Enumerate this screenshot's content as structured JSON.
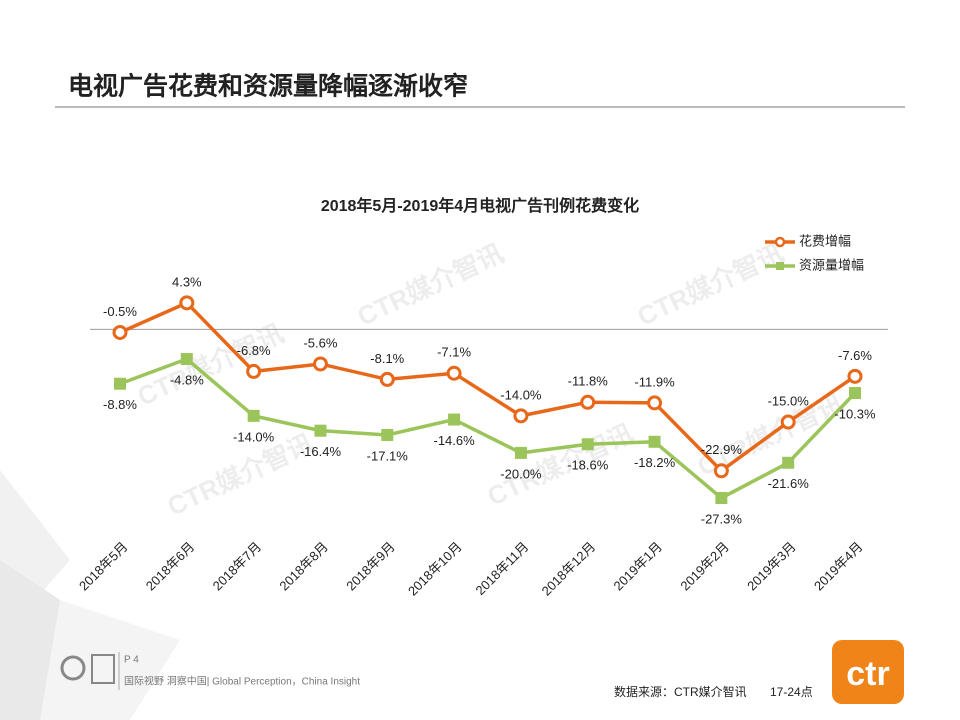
{
  "slide": {
    "title": "电视广告花费和资源量降幅逐渐收窄",
    "watermark": "CTR媒介智讯",
    "page": "P 4",
    "slogan": "国际视野 洞察中国| Global Perception，China Insight",
    "source": "数据来源：CTR媒介智讯",
    "time_range": "17-24点",
    "logo": "ctr"
  },
  "chart_data": {
    "type": "line",
    "title": "2018年5月-2019年4月电视广告刊例花费变化",
    "categories": [
      "2018年5月",
      "2018年6月",
      "2018年7月",
      "2018年8月",
      "2018年9月",
      "2018年10月",
      "2018年11月",
      "2018年12月",
      "2019年1月",
      "2019年2月",
      "2019年3月",
      "2019年4月"
    ],
    "series": [
      {
        "name": "花费增幅",
        "color": "#e8681a",
        "values": [
          -0.5,
          4.3,
          -6.8,
          -5.6,
          -8.1,
          -7.1,
          -14.0,
          -11.8,
          -11.9,
          -22.9,
          -15.0,
          -7.6
        ],
        "value_labels": [
          "-0.5%",
          "4.3%",
          "-6.8%",
          "-5.6%",
          "-8.1%",
          "-7.1%",
          "-14.0%",
          "-11.8%",
          "-11.9%",
          "-22.9%",
          "-15.0%",
          "-7.6%"
        ]
      },
      {
        "name": "资源量增幅",
        "color": "#9bc55a",
        "values": [
          -8.8,
          -4.8,
          -14.0,
          -16.4,
          -17.1,
          -14.6,
          -20.0,
          -18.6,
          -18.2,
          -27.3,
          -21.6,
          -10.3
        ],
        "value_labels": [
          "-8.8%",
          "-4.8%",
          "-14.0%",
          "-16.4%",
          "-17.1%",
          "-14.6%",
          "-20.0%",
          "-18.6%",
          "-18.2%",
          "-27.3%",
          "-21.6%",
          "-10.3%"
        ]
      }
    ],
    "ylim": [
      -32,
      8
    ],
    "legend": "top-right"
  }
}
